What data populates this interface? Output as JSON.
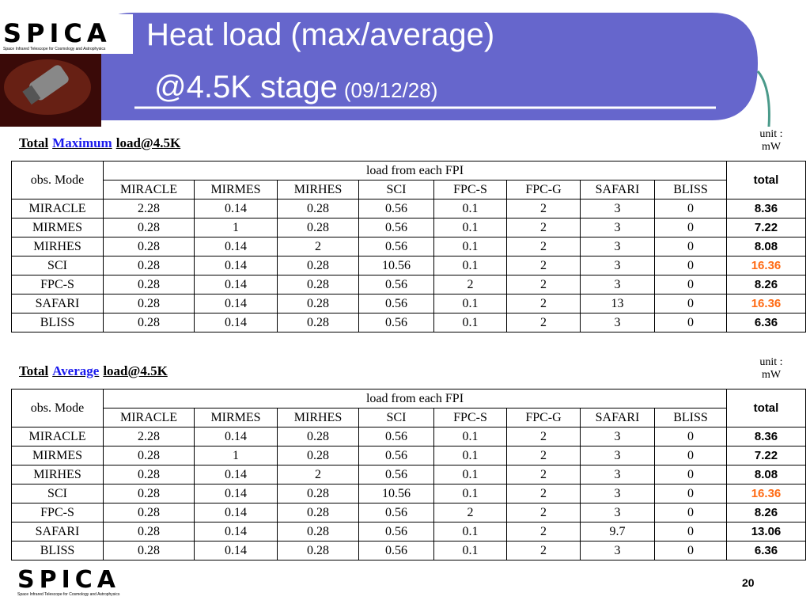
{
  "header": {
    "logo": {
      "name": "SPICA",
      "tagline": "Space Infrared Telescope for Cosmology and Astrophysics"
    },
    "title_line1": "Heat load (max/average)",
    "title_line2": "@4.5K stage",
    "title_date": "(09/12/28)"
  },
  "tables": [
    {
      "title_prefix": "Total",
      "title_emphasis": "Maximum",
      "title_suffix": "load@4.5K",
      "unit_label": "unit :",
      "unit": "mW",
      "row_header": "obs. Mode",
      "group_header": "load from each FPI",
      "total_header": "total",
      "columns": [
        "MIRACLE",
        "MIRMES",
        "MIRHES",
        "SCI",
        "FPC-S",
        "FPC-G",
        "SAFARI",
        "BLISS"
      ],
      "rows": [
        {
          "mode": "MIRACLE",
          "loads": [
            "2.28",
            "0.14",
            "0.28",
            "0.56",
            "0.1",
            "2",
            "3",
            "0"
          ],
          "total": "8.36"
        },
        {
          "mode": "MIRMES",
          "loads": [
            "0.28",
            "1",
            "0.28",
            "0.56",
            "0.1",
            "2",
            "3",
            "0"
          ],
          "total": "7.22"
        },
        {
          "mode": "MIRHES",
          "loads": [
            "0.28",
            "0.14",
            "2",
            "0.56",
            "0.1",
            "2",
            "3",
            "0"
          ],
          "total": "8.08"
        },
        {
          "mode": "SCI",
          "loads": [
            "0.28",
            "0.14",
            "0.28",
            "10.56",
            "0.1",
            "2",
            "3",
            "0"
          ],
          "total": "16.36",
          "total_color": "#ff6a13"
        },
        {
          "mode": "FPC-S",
          "loads": [
            "0.28",
            "0.14",
            "0.28",
            "0.56",
            "2",
            "2",
            "3",
            "0"
          ],
          "total": "8.26"
        },
        {
          "mode": "SAFARI",
          "loads": [
            "0.28",
            "0.14",
            "0.28",
            "0.56",
            "0.1",
            "2",
            "13",
            "0"
          ],
          "total": "16.36",
          "total_color": "#ff6a13"
        },
        {
          "mode": "BLISS",
          "loads": [
            "0.28",
            "0.14",
            "0.28",
            "0.56",
            "0.1",
            "2",
            "3",
            "0"
          ],
          "total": "6.36"
        }
      ]
    },
    {
      "title_prefix": "Total",
      "title_emphasis": "Average",
      "title_suffix": "load@4.5K",
      "unit_label": "unit :",
      "unit": "mW",
      "row_header": "obs. Mode",
      "group_header": "load from each FPI",
      "total_header": "total",
      "columns": [
        "MIRACLE",
        "MIRMES",
        "MIRHES",
        "SCI",
        "FPC-S",
        "FPC-G",
        "SAFARI",
        "BLISS"
      ],
      "rows": [
        {
          "mode": "MIRACLE",
          "loads": [
            "2.28",
            "0.14",
            "0.28",
            "0.56",
            "0.1",
            "2",
            "3",
            "0"
          ],
          "total": "8.36"
        },
        {
          "mode": "MIRMES",
          "loads": [
            "0.28",
            "1",
            "0.28",
            "0.56",
            "0.1",
            "2",
            "3",
            "0"
          ],
          "total": "7.22"
        },
        {
          "mode": "MIRHES",
          "loads": [
            "0.28",
            "0.14",
            "2",
            "0.56",
            "0.1",
            "2",
            "3",
            "0"
          ],
          "total": "8.08"
        },
        {
          "mode": "SCI",
          "loads": [
            "0.28",
            "0.14",
            "0.28",
            "10.56",
            "0.1",
            "2",
            "3",
            "0"
          ],
          "total": "16.36",
          "total_color": "#ff6a13"
        },
        {
          "mode": "FPC-S",
          "loads": [
            "0.28",
            "0.14",
            "0.28",
            "0.56",
            "2",
            "2",
            "3",
            "0"
          ],
          "total": "8.26"
        },
        {
          "mode": "SAFARI",
          "loads": [
            "0.28",
            "0.14",
            "0.28",
            "0.56",
            "0.1",
            "2",
            "9.7",
            "0"
          ],
          "total": "13.06"
        },
        {
          "mode": "BLISS",
          "loads": [
            "0.28",
            "0.14",
            "0.28",
            "0.56",
            "0.1",
            "2",
            "3",
            "0"
          ],
          "total": "6.36"
        }
      ]
    }
  ],
  "footer": {
    "logo": {
      "name": "SPICA",
      "tagline": "Space Infrared Telescope for Cosmology and Astrophysics"
    },
    "page_number": "20"
  }
}
